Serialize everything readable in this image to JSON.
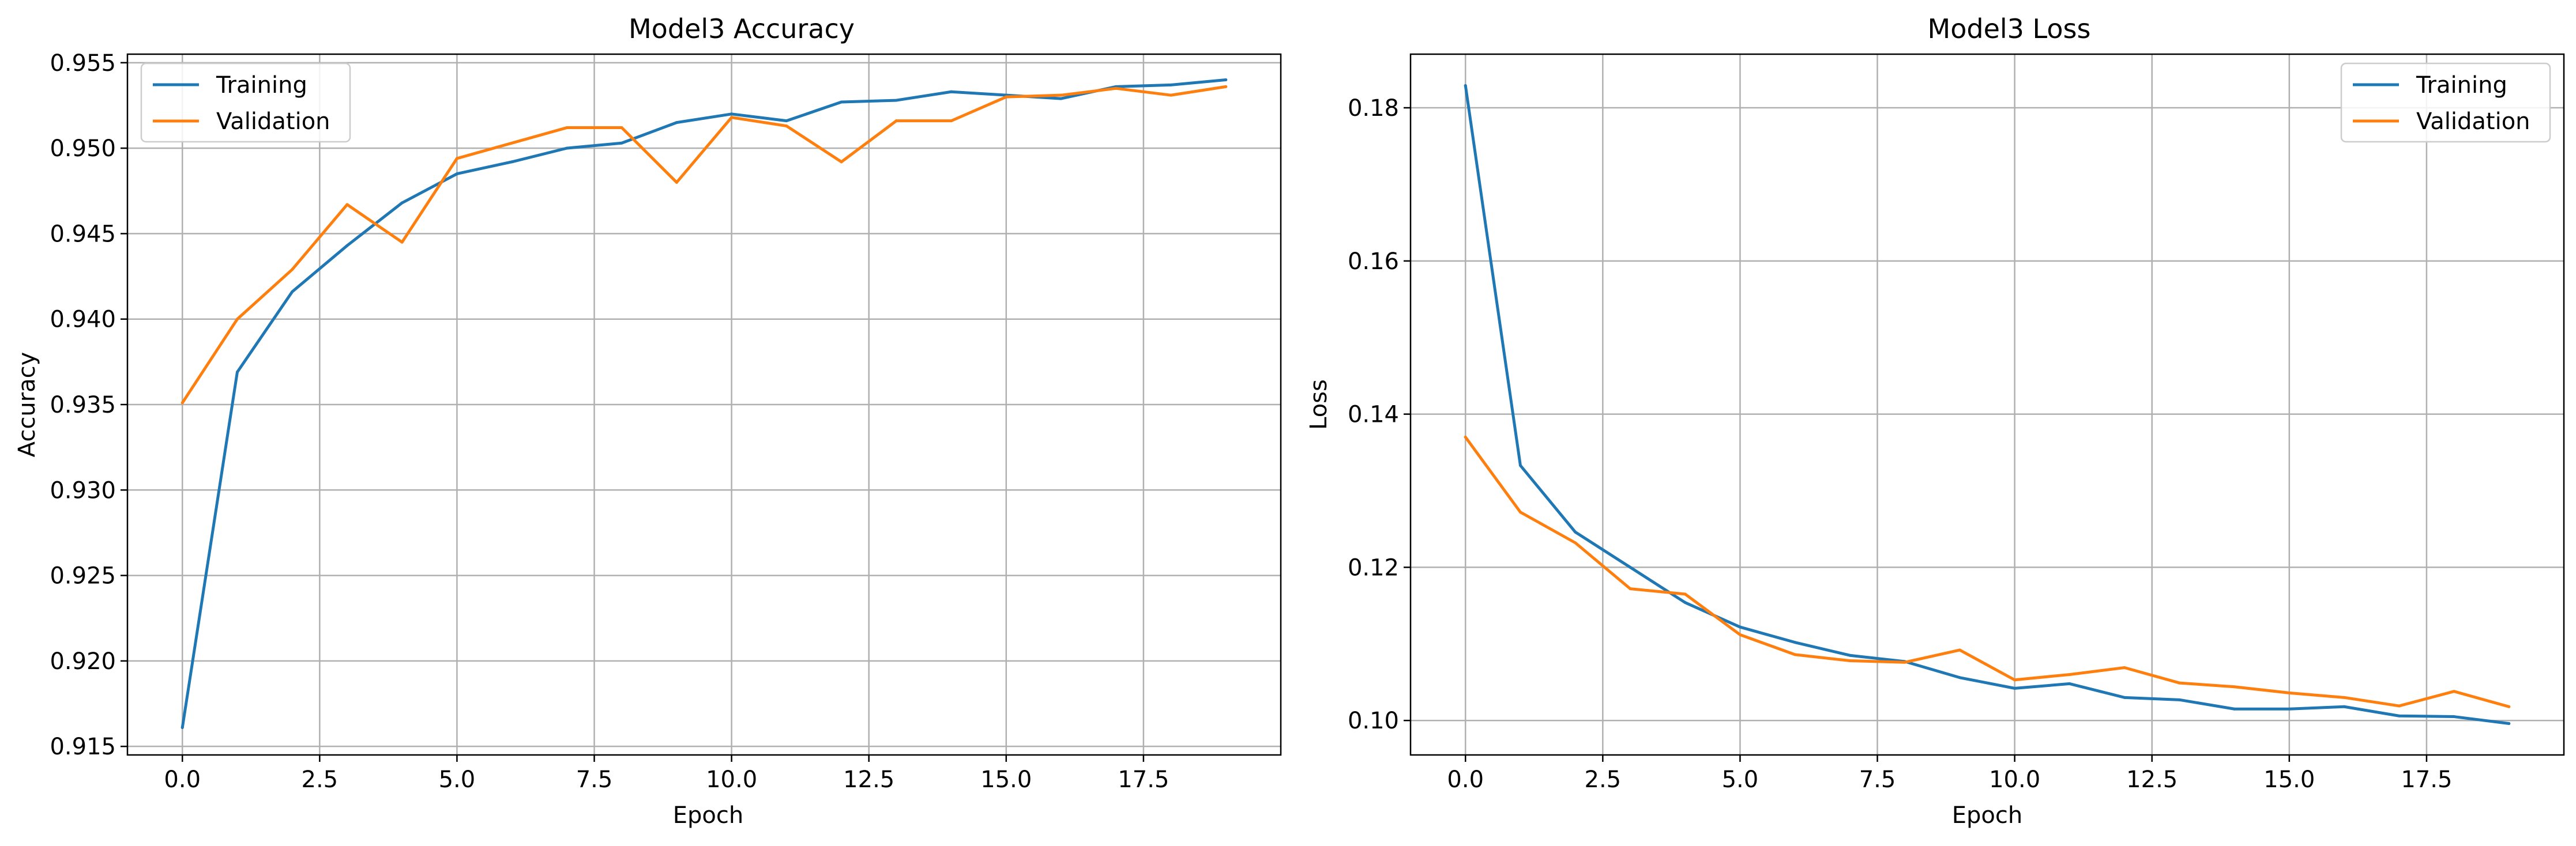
{
  "chart_data": [
    {
      "type": "line",
      "title": "Model3 Accuracy",
      "xlabel": "Epoch",
      "ylabel": "Accuracy",
      "grid": true,
      "legend_placement": "top-left",
      "xlim": [
        -1,
        20
      ],
      "ylim": [
        0.9145,
        0.9555
      ],
      "xticks": [
        0,
        2.5,
        5,
        7.5,
        10,
        12.5,
        15,
        17.5
      ],
      "xtick_labels": [
        "0.0",
        "2.5",
        "5.0",
        "7.5",
        "10.0",
        "12.5",
        "15.0",
        "17.5"
      ],
      "yticks": [
        0.915,
        0.92,
        0.925,
        0.93,
        0.935,
        0.94,
        0.945,
        0.95,
        0.955
      ],
      "ytick_labels": [
        "0.915",
        "0.920",
        "0.925",
        "0.930",
        "0.935",
        "0.940",
        "0.945",
        "0.950",
        "0.955"
      ],
      "x": [
        0,
        1,
        2,
        3,
        4,
        5,
        6,
        7,
        8,
        9,
        10,
        11,
        12,
        13,
        14,
        15,
        16,
        17,
        18,
        19
      ],
      "series": [
        {
          "name": "Training",
          "color": "#1f77b4",
          "values": [
            0.9161,
            0.9369,
            0.9416,
            0.9443,
            0.9468,
            0.9485,
            0.9492,
            0.95,
            0.9503,
            0.9515,
            0.952,
            0.9516,
            0.9527,
            0.9528,
            0.9533,
            0.9531,
            0.9529,
            0.9536,
            0.9537,
            0.954
          ]
        },
        {
          "name": "Validation",
          "color": "#ff7f0e",
          "values": [
            0.9351,
            0.94,
            0.9429,
            0.9467,
            0.9445,
            0.9494,
            0.9503,
            0.9512,
            0.9512,
            0.948,
            0.9518,
            0.9513,
            0.9492,
            0.9516,
            0.9516,
            0.953,
            0.9531,
            0.9535,
            0.9531,
            0.9536
          ]
        }
      ]
    },
    {
      "type": "line",
      "title": "Model3 Loss",
      "xlabel": "Epoch",
      "ylabel": "Loss",
      "grid": true,
      "legend_placement": "top-right",
      "xlim": [
        -1,
        20
      ],
      "ylim": [
        0.0955,
        0.187
      ],
      "xticks": [
        0,
        2.5,
        5,
        7.5,
        10,
        12.5,
        15,
        17.5
      ],
      "xtick_labels": [
        "0.0",
        "2.5",
        "5.0",
        "7.5",
        "10.0",
        "12.5",
        "15.0",
        "17.5"
      ],
      "yticks": [
        0.1,
        0.12,
        0.14,
        0.16,
        0.18
      ],
      "ytick_labels": [
        "0.10",
        "0.12",
        "0.14",
        "0.16",
        "0.18"
      ],
      "x": [
        0,
        1,
        2,
        3,
        4,
        5,
        6,
        7,
        8,
        9,
        10,
        11,
        12,
        13,
        14,
        15,
        16,
        17,
        18,
        19
      ],
      "series": [
        {
          "name": "Training",
          "color": "#1f77b4",
          "values": [
            0.1829,
            0.1333,
            0.1246,
            0.12,
            0.1154,
            0.1122,
            0.1102,
            0.1085,
            0.1077,
            0.1056,
            0.1042,
            0.1048,
            0.103,
            0.1027,
            0.1015,
            0.1015,
            0.1018,
            0.1006,
            0.1005,
            0.0996
          ]
        },
        {
          "name": "Validation",
          "color": "#ff7f0e",
          "values": [
            0.137,
            0.1272,
            0.1232,
            0.1172,
            0.1165,
            0.1112,
            0.1086,
            0.1078,
            0.1076,
            0.1092,
            0.1053,
            0.106,
            0.1069,
            0.1049,
            0.1044,
            0.1036,
            0.103,
            0.1019,
            0.1038,
            0.1018
          ]
        }
      ]
    }
  ]
}
